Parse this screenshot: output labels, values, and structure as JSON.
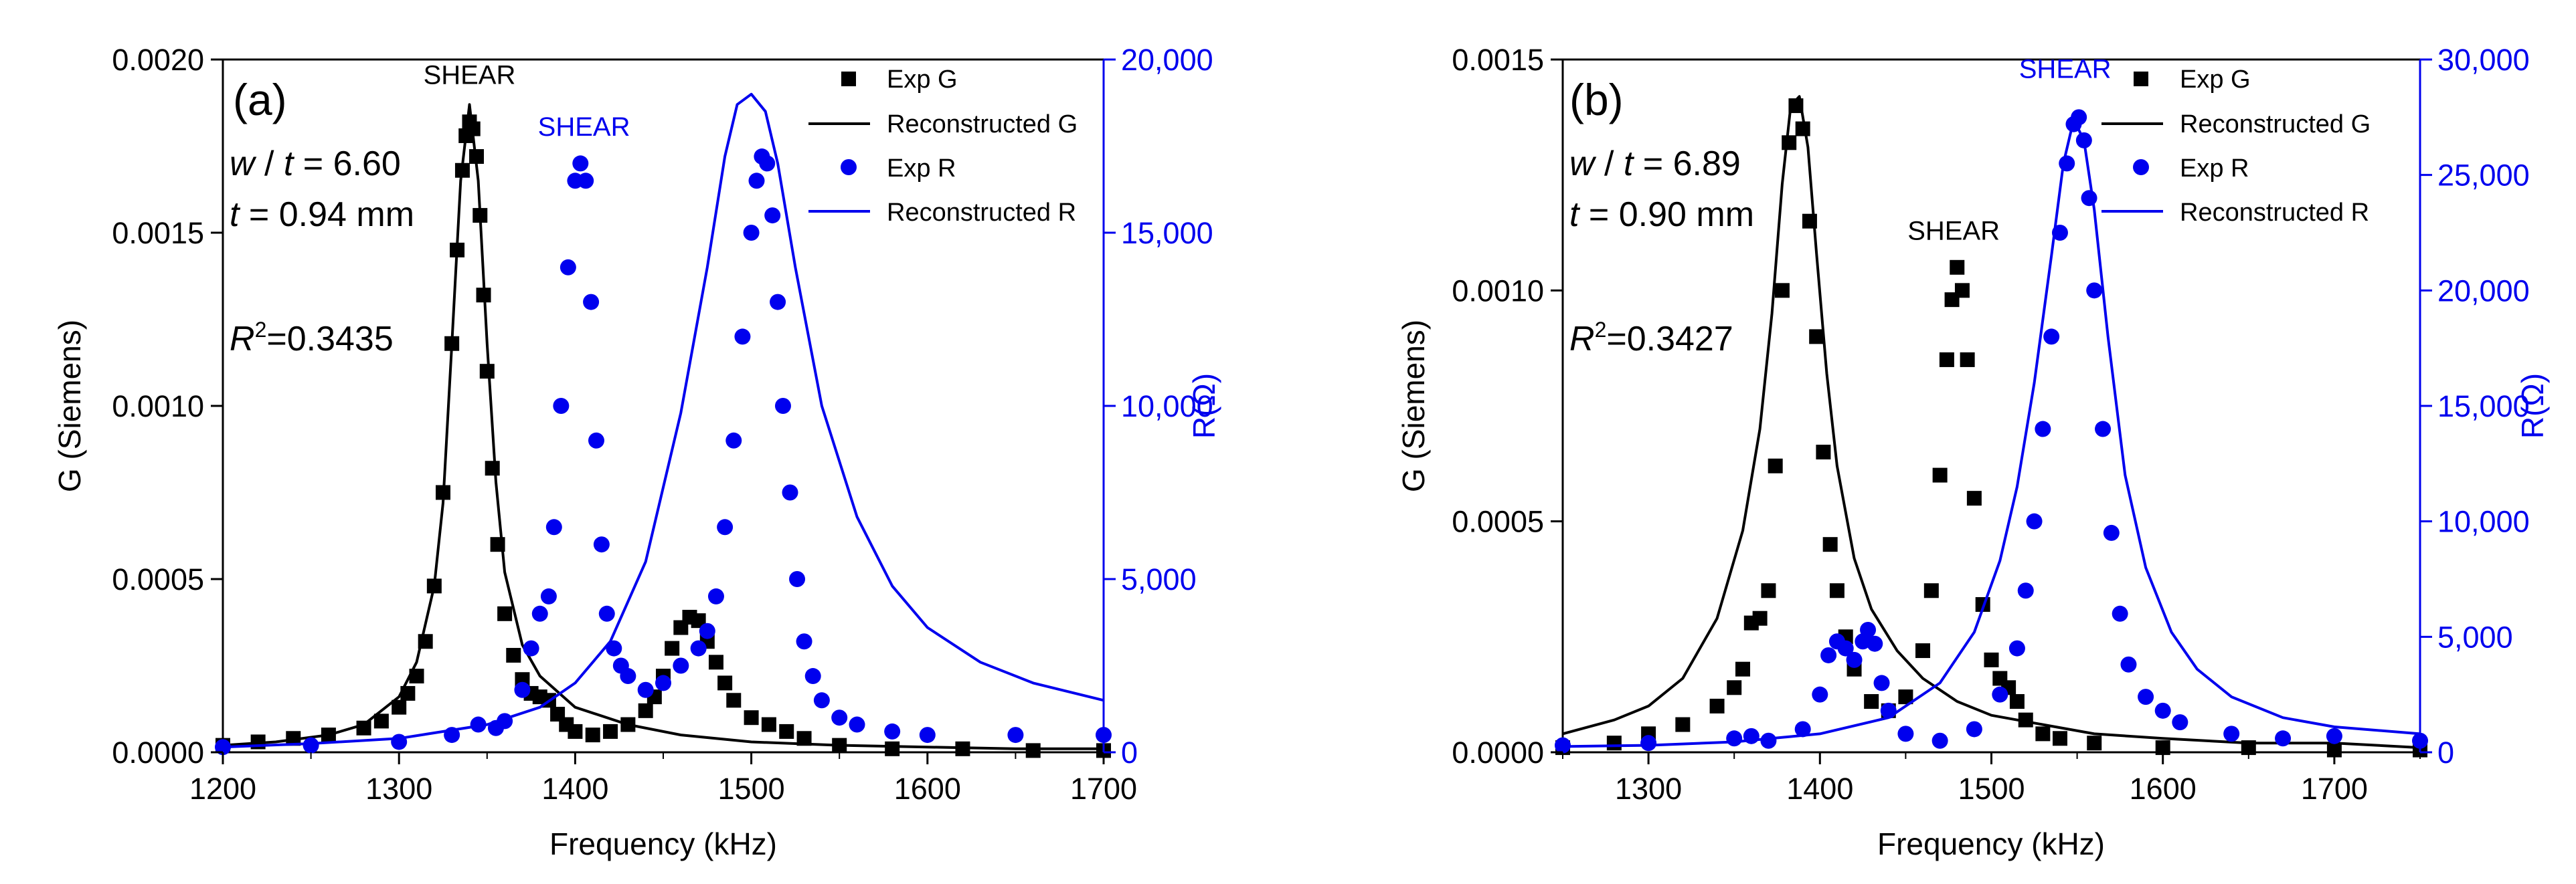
{
  "chart_data": [
    {
      "panel": "(a)",
      "type": "line",
      "xlabel": "Frequency (kHz)",
      "ylabel": "G (Siemens)",
      "y2label": "R(Ω)",
      "xlim": [
        1200,
        1700
      ],
      "ylim": [
        0,
        0.002
      ],
      "y2lim": [
        0,
        20000
      ],
      "xticks": [
        "1200",
        "1300",
        "1400",
        "1500",
        "1600",
        "1700"
      ],
      "yticks": [
        "0.0000",
        "0.0005",
        "0.0010",
        "0.0015",
        "0.0020"
      ],
      "y2ticks": [
        "0",
        "5,000",
        "10,000",
        "15,000",
        "20,000"
      ],
      "annotations": {
        "ratio_value": "6.60",
        "thickness": "0.94 mm",
        "r2_value": "=0.3435"
      },
      "shear_labels": [
        {
          "text": "SHEAR",
          "color": "#000000",
          "x": 1340,
          "y": 0.00193,
          "axis": "left"
        },
        {
          "text": "SHEAR",
          "color": "#0000ee",
          "x": 1405,
          "y": 17800,
          "axis": "right"
        }
      ],
      "series": [
        {
          "name": "Exp G",
          "style": "square",
          "color": "#000000",
          "axis": "left",
          "x": [
            1200,
            1220,
            1240,
            1260,
            1280,
            1290,
            1300,
            1305,
            1310,
            1315,
            1320,
            1325,
            1330,
            1333,
            1336,
            1338,
            1340,
            1342,
            1344,
            1346,
            1348,
            1350,
            1353,
            1356,
            1360,
            1365,
            1370,
            1375,
            1380,
            1385,
            1390,
            1395,
            1400,
            1410,
            1420,
            1430,
            1440,
            1445,
            1450,
            1455,
            1460,
            1465,
            1470,
            1475,
            1480,
            1485,
            1490,
            1500,
            1510,
            1520,
            1530,
            1550,
            1580,
            1620,
            1660,
            1700
          ],
          "y": [
            2e-05,
            3e-05,
            4e-05,
            5e-05,
            7e-05,
            9e-05,
            0.00013,
            0.00017,
            0.00022,
            0.00032,
            0.00048,
            0.00075,
            0.00118,
            0.00145,
            0.00168,
            0.00178,
            0.00182,
            0.0018,
            0.00172,
            0.00155,
            0.00132,
            0.0011,
            0.00082,
            0.0006,
            0.0004,
            0.00028,
            0.00021,
            0.00017,
            0.00016,
            0.00015,
            0.00011,
            8e-05,
            6e-05,
            5e-05,
            6e-05,
            8e-05,
            0.00012,
            0.00016,
            0.00022,
            0.0003,
            0.00036,
            0.00039,
            0.00038,
            0.00032,
            0.00026,
            0.0002,
            0.00015,
            0.0001,
            8e-05,
            6e-05,
            4e-05,
            2e-05,
            1e-05,
            1e-05,
            5e-06,
            5e-06
          ]
        },
        {
          "name": "Reconstructed G",
          "style": "line",
          "color": "#000000",
          "axis": "left",
          "x": [
            1200,
            1230,
            1260,
            1280,
            1300,
            1310,
            1320,
            1325,
            1330,
            1335,
            1340,
            1345,
            1350,
            1355,
            1360,
            1370,
            1380,
            1400,
            1430,
            1460,
            1500,
            1550,
            1600,
            1650,
            1700
          ],
          "y": [
            2e-05,
            3e-05,
            5e-05,
            8e-05,
            0.00016,
            0.00026,
            0.00048,
            0.00072,
            0.00118,
            0.00165,
            0.00187,
            0.00165,
            0.00118,
            0.00078,
            0.00052,
            0.00031,
            0.00022,
            0.00013,
            8e-05,
            5e-05,
            3e-05,
            2e-05,
            1.5e-05,
            1e-05,
            1e-05
          ]
        },
        {
          "name": "Exp R",
          "style": "circle",
          "color": "#0000ee",
          "axis": "right",
          "x": [
            1200,
            1250,
            1300,
            1330,
            1345,
            1355,
            1360,
            1370,
            1375,
            1380,
            1385,
            1388,
            1392,
            1396,
            1400,
            1403,
            1406,
            1409,
            1412,
            1415,
            1418,
            1422,
            1426,
            1430,
            1440,
            1450,
            1460,
            1470,
            1475,
            1480,
            1485,
            1490,
            1495,
            1500,
            1503,
            1506,
            1509,
            1512,
            1515,
            1518,
            1522,
            1526,
            1530,
            1535,
            1540,
            1550,
            1560,
            1580,
            1600,
            1650,
            1700
          ],
          "y": [
            150,
            200,
            300,
            500,
            800,
            700,
            900,
            1800,
            3000,
            4000,
            4500,
            6500,
            10000,
            14000,
            16500,
            17000,
            16500,
            13000,
            9000,
            6000,
            4000,
            3000,
            2500,
            2200,
            1800,
            2000,
            2500,
            3000,
            3500,
            4500,
            6500,
            9000,
            12000,
            15000,
            16500,
            17200,
            17000,
            15500,
            13000,
            10000,
            7500,
            5000,
            3200,
            2200,
            1500,
            1000,
            800,
            600,
            500,
            500,
            500
          ]
        },
        {
          "name": "Reconstructed R",
          "style": "line",
          "color": "#0000ee",
          "axis": "right",
          "x": [
            1200,
            1250,
            1300,
            1350,
            1380,
            1400,
            1420,
            1440,
            1460,
            1475,
            1485,
            1492,
            1500,
            1508,
            1515,
            1525,
            1540,
            1560,
            1580,
            1600,
            1630,
            1660,
            1700
          ],
          "y": [
            150,
            250,
            400,
            800,
            1300,
            2000,
            3200,
            5500,
            9800,
            14000,
            17200,
            18700,
            19000,
            18500,
            17000,
            14000,
            10000,
            6800,
            4800,
            3600,
            2600,
            2000,
            1500
          ]
        }
      ]
    },
    {
      "panel": "(b)",
      "type": "line",
      "xlabel": "Frequency (kHz)",
      "ylabel": "G (Siemens)",
      "y2label": "R(Ω)",
      "xlim": [
        1250,
        1750
      ],
      "ylim": [
        0,
        0.0015
      ],
      "y2lim": [
        0,
        30000
      ],
      "xticks": [
        "1300",
        "1400",
        "1500",
        "1600",
        "1700"
      ],
      "yticks": [
        "0.0000",
        "0.0005",
        "0.0010",
        "0.0015"
      ],
      "y2ticks": [
        "0",
        "5,000",
        "10,000",
        "15,000",
        "20,000",
        "25,000",
        "30,000"
      ],
      "annotations": {
        "ratio_value": "6.89",
        "thickness": "0.90 mm",
        "r2_value": "=0.3427"
      },
      "shear_labels": [
        {
          "text": "SHEAR",
          "color": "#0000ee",
          "x": 1543,
          "y": 0.00146,
          "axis": "left"
        },
        {
          "text": "SHEAR",
          "color": "#000000",
          "x": 1478,
          "y": 0.00111,
          "axis": "left"
        }
      ],
      "series": [
        {
          "name": "Exp G",
          "style": "square",
          "color": "#000000",
          "axis": "left",
          "x": [
            1250,
            1280,
            1300,
            1320,
            1340,
            1350,
            1355,
            1360,
            1365,
            1370,
            1374,
            1378,
            1382,
            1386,
            1390,
            1394,
            1398,
            1402,
            1406,
            1410,
            1415,
            1420,
            1430,
            1440,
            1450,
            1460,
            1465,
            1470,
            1474,
            1477,
            1480,
            1483,
            1486,
            1490,
            1495,
            1500,
            1505,
            1510,
            1515,
            1520,
            1530,
            1540,
            1560,
            1600,
            1650,
            1700,
            1750
          ],
          "y": [
            1e-05,
            2e-05,
            4e-05,
            6e-05,
            0.0001,
            0.00014,
            0.00018,
            0.00028,
            0.00029,
            0.00035,
            0.00062,
            0.001,
            0.00132,
            0.0014,
            0.00135,
            0.00115,
            0.0009,
            0.00065,
            0.00045,
            0.00035,
            0.00025,
            0.00018,
            0.00011,
            9e-05,
            0.00012,
            0.00022,
            0.00035,
            0.0006,
            0.00085,
            0.00098,
            0.00105,
            0.001,
            0.00085,
            0.00055,
            0.00032,
            0.0002,
            0.00016,
            0.00014,
            0.00011,
            7e-05,
            4e-05,
            3e-05,
            2e-05,
            1e-05,
            1e-05,
            5e-06,
            5e-06
          ]
        },
        {
          "name": "Reconstructed G",
          "style": "line",
          "color": "#000000",
          "axis": "left",
          "x": [
            1250,
            1280,
            1300,
            1320,
            1340,
            1355,
            1365,
            1372,
            1378,
            1383,
            1388,
            1393,
            1398,
            1404,
            1410,
            1420,
            1430,
            1445,
            1460,
            1480,
            1500,
            1530,
            1560,
            1600,
            1650,
            1700,
            1750
          ],
          "y": [
            4e-05,
            7e-05,
            0.0001,
            0.00016,
            0.00029,
            0.00048,
            0.0007,
            0.00095,
            0.00123,
            0.0014,
            0.00142,
            0.00131,
            0.00108,
            0.00082,
            0.00062,
            0.00042,
            0.00031,
            0.00022,
            0.00016,
            0.00011,
            8e-05,
            6e-05,
            4e-05,
            3e-05,
            2e-05,
            2e-05,
            1e-05
          ]
        },
        {
          "name": "Exp R",
          "style": "circle",
          "color": "#0000ee",
          "axis": "right",
          "x": [
            1250,
            1300,
            1350,
            1360,
            1370,
            1390,
            1400,
            1405,
            1410,
            1415,
            1420,
            1425,
            1428,
            1432,
            1436,
            1440,
            1450,
            1470,
            1490,
            1505,
            1515,
            1520,
            1525,
            1530,
            1535,
            1540,
            1544,
            1548,
            1551,
            1554,
            1557,
            1560,
            1565,
            1570,
            1575,
            1580,
            1590,
            1600,
            1610,
            1640,
            1670,
            1700,
            1750
          ],
          "y": [
            300,
            400,
            600,
            700,
            500,
            1000,
            2500,
            4200,
            4800,
            4500,
            4000,
            4800,
            5300,
            4700,
            3000,
            1800,
            800,
            500,
            1000,
            2500,
            4500,
            7000,
            10000,
            14000,
            18000,
            22500,
            25500,
            27200,
            27500,
            26500,
            24000,
            20000,
            14000,
            9500,
            6000,
            3800,
            2400,
            1800,
            1300,
            800,
            600,
            700,
            500
          ]
        },
        {
          "name": "Reconstructed R",
          "style": "line",
          "color": "#0000ee",
          "axis": "right",
          "x": [
            1250,
            1300,
            1350,
            1400,
            1440,
            1470,
            1490,
            1505,
            1515,
            1525,
            1535,
            1542,
            1548,
            1554,
            1560,
            1568,
            1578,
            1590,
            1605,
            1620,
            1640,
            1670,
            1700,
            1750
          ],
          "y": [
            250,
            300,
            450,
            800,
            1500,
            3000,
            5200,
            8300,
            11500,
            16000,
            21500,
            25500,
            27400,
            26500,
            23500,
            18000,
            12000,
            8000,
            5200,
            3600,
            2400,
            1500,
            1100,
            800
          ]
        }
      ]
    }
  ]
}
